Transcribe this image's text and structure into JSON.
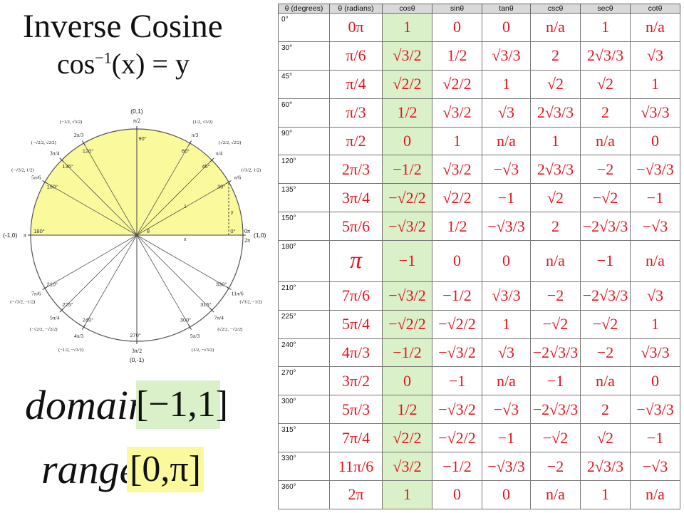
{
  "title": "Inverse Cosine",
  "formula": {
    "lhs": "cos",
    "exp": "−1",
    "rhs": "(x) = y"
  },
  "domain": {
    "word": "domain",
    "interval": "[−1,1]"
  },
  "range": {
    "word": "range",
    "interval": "[0,π]"
  },
  "colors": {
    "red": "#e0141e",
    "cos_highlight": "#d9f0c8",
    "circle_fill": "#fafa9c",
    "range_box": "#fafa9c"
  },
  "unit_circle": {
    "axis_points": {
      "top": "(0,1)",
      "bottom": "(0,-1)",
      "left": "(-1,0)",
      "right": "(1,0)"
    },
    "axis_radians": {
      "top": "π/2",
      "bottom": "3π/2",
      "left": "π",
      "right_zero": "0π",
      "right_twopi": "2π"
    },
    "axis_letters": {
      "x": "x",
      "y": "y",
      "one": "1",
      "theta": "θ"
    },
    "angles": [
      {
        "deg": "0°",
        "rad": "0π",
        "coord": "(1,0)"
      },
      {
        "deg": "30°",
        "rad": "π/6",
        "coord": "(√3/2, 1/2)"
      },
      {
        "deg": "45°",
        "rad": "π/4",
        "coord": "(√2/2, √2/2)"
      },
      {
        "deg": "60°",
        "rad": "π/3",
        "coord": "(1/2, √3/2)"
      },
      {
        "deg": "90°",
        "rad": "π/2",
        "coord": "(0,1)"
      },
      {
        "deg": "120°",
        "rad": "2π/3",
        "coord": "(−1/2, √3/2)"
      },
      {
        "deg": "135°",
        "rad": "3π/4",
        "coord": "(−√2/2, √2/2)"
      },
      {
        "deg": "150°",
        "rad": "5π/6",
        "coord": "(−√3/2, 1/2)"
      },
      {
        "deg": "180°",
        "rad": "π",
        "coord": "(-1,0)"
      },
      {
        "deg": "210°",
        "rad": "7π/6",
        "coord": "(−√3/2, −1/2)"
      },
      {
        "deg": "225°",
        "rad": "5π/4",
        "coord": "(−√2/2, −√2/2)"
      },
      {
        "deg": "240°",
        "rad": "4π/3",
        "coord": "(−1/2, −√3/2)"
      },
      {
        "deg": "270°",
        "rad": "3π/2",
        "coord": "(0,-1)"
      },
      {
        "deg": "300°",
        "rad": "5π/3",
        "coord": "(1/2, −√3/2)"
      },
      {
        "deg": "315°",
        "rad": "7π/4",
        "coord": "(√2/2, −√2/2)"
      },
      {
        "deg": "330°",
        "rad": "11π/6",
        "coord": "(√3/2, −1/2)"
      },
      {
        "deg": "360°",
        "rad": "2π",
        "coord": "(1,0)"
      }
    ]
  },
  "table": {
    "headers": [
      "θ (degrees)",
      "θ (radians)",
      "cosθ",
      "sinθ",
      "tanθ",
      "cscθ",
      "secθ",
      "cotθ"
    ],
    "rows": [
      {
        "deg": "0°",
        "rad": "0π",
        "cos": "1",
        "sin": "0",
        "tan": "0",
        "csc": "n/a",
        "sec": "1",
        "cot": "n/a"
      },
      {
        "deg": "30°",
        "rad": "π/6",
        "cos": "√3/2",
        "sin": "1/2",
        "tan": "√3/3",
        "csc": "2",
        "sec": "2√3/3",
        "cot": "√3"
      },
      {
        "deg": "45°",
        "rad": "π/4",
        "cos": "√2/2",
        "sin": "√2/2",
        "tan": "1",
        "csc": "√2",
        "sec": "√2",
        "cot": "1"
      },
      {
        "deg": "60°",
        "rad": "π/3",
        "cos": "1/2",
        "sin": "√3/2",
        "tan": "√3",
        "csc": "2√3/3",
        "sec": "2",
        "cot": "√3/3"
      },
      {
        "deg": "90°",
        "rad": "π/2",
        "cos": "0",
        "sin": "1",
        "tan": "n/a",
        "csc": "1",
        "sec": "n/a",
        "cot": "0"
      },
      {
        "deg": "120°",
        "rad": "2π/3",
        "cos": "−1/2",
        "sin": "√3/2",
        "tan": "−√3",
        "csc": "2√3/3",
        "sec": "−2",
        "cot": "−√3/3"
      },
      {
        "deg": "135°",
        "rad": "3π/4",
        "cos": "−√2/2",
        "sin": "√2/2",
        "tan": "−1",
        "csc": "√2",
        "sec": "−√2",
        "cot": "−1"
      },
      {
        "deg": "150°",
        "rad": "5π/6",
        "cos": "−√3/2",
        "sin": "1/2",
        "tan": "−√3/3",
        "csc": "2",
        "sec": "−2√3/3",
        "cot": "−√3"
      },
      {
        "deg": "180°",
        "rad": "π",
        "cos": "−1",
        "sin": "0",
        "tan": "0",
        "csc": "n/a",
        "sec": "−1",
        "cot": "n/a"
      },
      {
        "deg": "210°",
        "rad": "7π/6",
        "cos": "−√3/2",
        "sin": "−1/2",
        "tan": "√3/3",
        "csc": "−2",
        "sec": "−2√3/3",
        "cot": "√3"
      },
      {
        "deg": "225°",
        "rad": "5π/4",
        "cos": "−√2/2",
        "sin": "−√2/2",
        "tan": "1",
        "csc": "−√2",
        "sec": "−√2",
        "cot": "1"
      },
      {
        "deg": "240°",
        "rad": "4π/3",
        "cos": "−1/2",
        "sin": "−√3/2",
        "tan": "√3",
        "csc": "−2√3/3",
        "sec": "−2",
        "cot": "√3/3"
      },
      {
        "deg": "270°",
        "rad": "3π/2",
        "cos": "0",
        "sin": "−1",
        "tan": "n/a",
        "csc": "−1",
        "sec": "n/a",
        "cot": "0"
      },
      {
        "deg": "300°",
        "rad": "5π/3",
        "cos": "1/2",
        "sin": "−√3/2",
        "tan": "−√3",
        "csc": "−2√3/3",
        "sec": "2",
        "cot": "−√3/3"
      },
      {
        "deg": "315°",
        "rad": "7π/4",
        "cos": "√2/2",
        "sin": "−√2/2",
        "tan": "−1",
        "csc": "−√2",
        "sec": "√2",
        "cot": "−1"
      },
      {
        "deg": "330°",
        "rad": "11π/6",
        "cos": "√3/2",
        "sin": "−1/2",
        "tan": "−√3/3",
        "csc": "−2",
        "sec": "2√3/3",
        "cot": "−√3"
      },
      {
        "deg": "360°",
        "rad": "2π",
        "cos": "1",
        "sin": "0",
        "tan": "0",
        "csc": "n/a",
        "sec": "1",
        "cot": "n/a"
      }
    ]
  }
}
